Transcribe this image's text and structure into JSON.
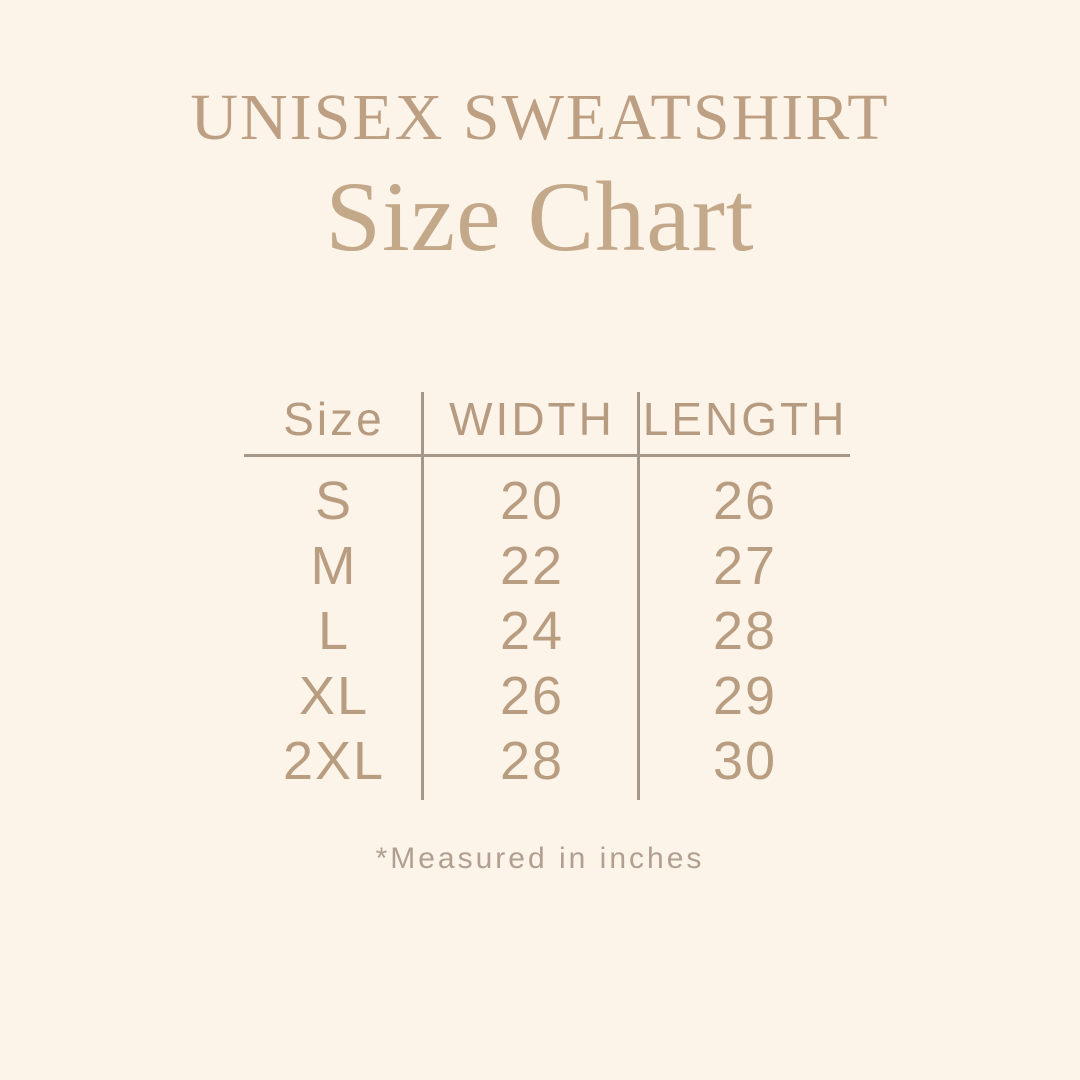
{
  "header": {
    "product_title": "UNISEX SWEATSHIRT",
    "chart_title": "Size Chart"
  },
  "footnote": "*Measured in inches",
  "colors": {
    "bg": "#fcf3e9",
    "title-primary": "#bda083",
    "title-secondary": "#c4a88a",
    "table-text": "#b89d81",
    "header-text": "#b69b80",
    "line": "#a69889",
    "footnote-text": "#b1a091"
  },
  "chart_data": {
    "type": "table",
    "title": "UNISEX SWEATSHIRT Size Chart",
    "columns": [
      "Size",
      "WIDTH",
      "LENGTH"
    ],
    "rows": [
      [
        "S",
        20,
        26
      ],
      [
        "M",
        22,
        27
      ],
      [
        "L",
        24,
        28
      ],
      [
        "XL",
        26,
        29
      ],
      [
        "2XL",
        28,
        30
      ]
    ],
    "units": "inches",
    "units_note": "*Measured in inches",
    "layout": "size column | width column | length column, taupe rule under header and vertical rules between columns"
  }
}
